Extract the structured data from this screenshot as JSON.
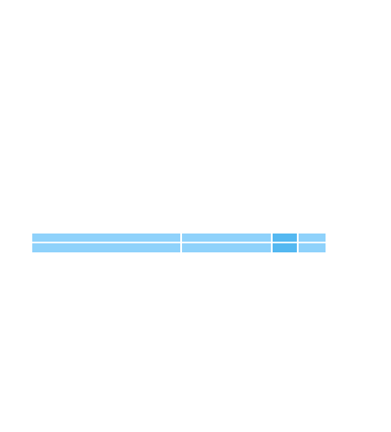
{
  "bar": {
    "segments": [
      {
        "id": "segment-1",
        "active": false
      },
      {
        "id": "segment-2",
        "active": false
      },
      {
        "id": "segment-3",
        "active": true
      },
      {
        "id": "segment-4",
        "active": false
      }
    ]
  },
  "colors": {
    "segment": "#8fd2fb",
    "segment_active": "#54b8f1",
    "background": "#ffffff"
  }
}
